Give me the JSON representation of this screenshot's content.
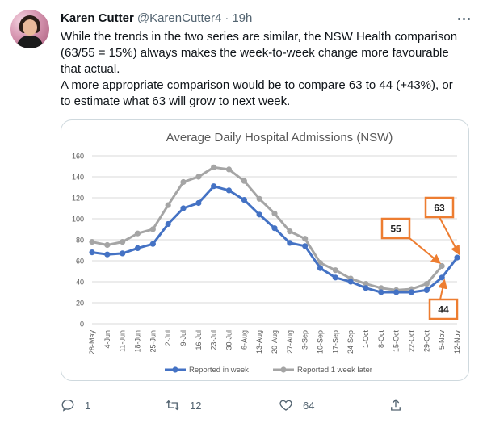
{
  "tweet": {
    "author_name": "Karen Cutter",
    "handle": "@KarenCutter4",
    "separator": "·",
    "time": "19h",
    "text_lines": [
      "While the trends in the two series are similar, the NSW Health comparison",
      "(63/55 = 15%) always makes the week-to-week change more favourable",
      "that actual.",
      "A more appropriate comparison would be to compare 63 to 44 (+43%), or",
      "to estimate what 63 will grow to next week."
    ],
    "reply_count": "1",
    "retweet_count": "12",
    "like_count": "64",
    "icons": {
      "more": "more-horizontal-icon",
      "reply": "reply-icon",
      "retweet": "retweet-icon",
      "like": "heart-icon",
      "share": "share-icon"
    }
  },
  "chart_data": {
    "type": "line",
    "title": "Average Daily Hospital Admissions (NSW)",
    "xlabel": "",
    "ylabel": "",
    "ylim": [
      0,
      160
    ],
    "yticks": [
      0,
      20,
      40,
      60,
      80,
      100,
      120,
      140,
      160
    ],
    "grid": true,
    "legend_position": "bottom",
    "categories": [
      "28-May",
      "4-Jun",
      "11-Jun",
      "18-Jun",
      "25-Jun",
      "2-Jul",
      "9-Jul",
      "16-Jul",
      "23-Jul",
      "30-Jul",
      "6-Aug",
      "13-Aug",
      "20-Aug",
      "27-Aug",
      "3-Sep",
      "10-Sep",
      "17-Sep",
      "24-Sep",
      "1-Oct",
      "8-Oct",
      "15-Oct",
      "22-Oct",
      "29-Oct",
      "5-Nov",
      "12-Nov"
    ],
    "series": [
      {
        "name": "Reported in week",
        "color": "#4472C4",
        "values": [
          68,
          66,
          67,
          72,
          76,
          95,
          110,
          115,
          131,
          127,
          118,
          104,
          91,
          77,
          74,
          53,
          44,
          40,
          34,
          30,
          30,
          30,
          32,
          44,
          63
        ]
      },
      {
        "name": "Reported 1 week later",
        "color": "#A5A5A5",
        "values": [
          78,
          75,
          78,
          86,
          90,
          113,
          135,
          140,
          149,
          147,
          136,
          119,
          105,
          88,
          81,
          58,
          51,
          43,
          38,
          34,
          32,
          33,
          38,
          55,
          null
        ]
      }
    ],
    "annotations": [
      {
        "label": "55",
        "color": "#ED7D31"
      },
      {
        "label": "63",
        "color": "#ED7D31"
      },
      {
        "label": "44",
        "color": "#ED7D31"
      }
    ]
  }
}
